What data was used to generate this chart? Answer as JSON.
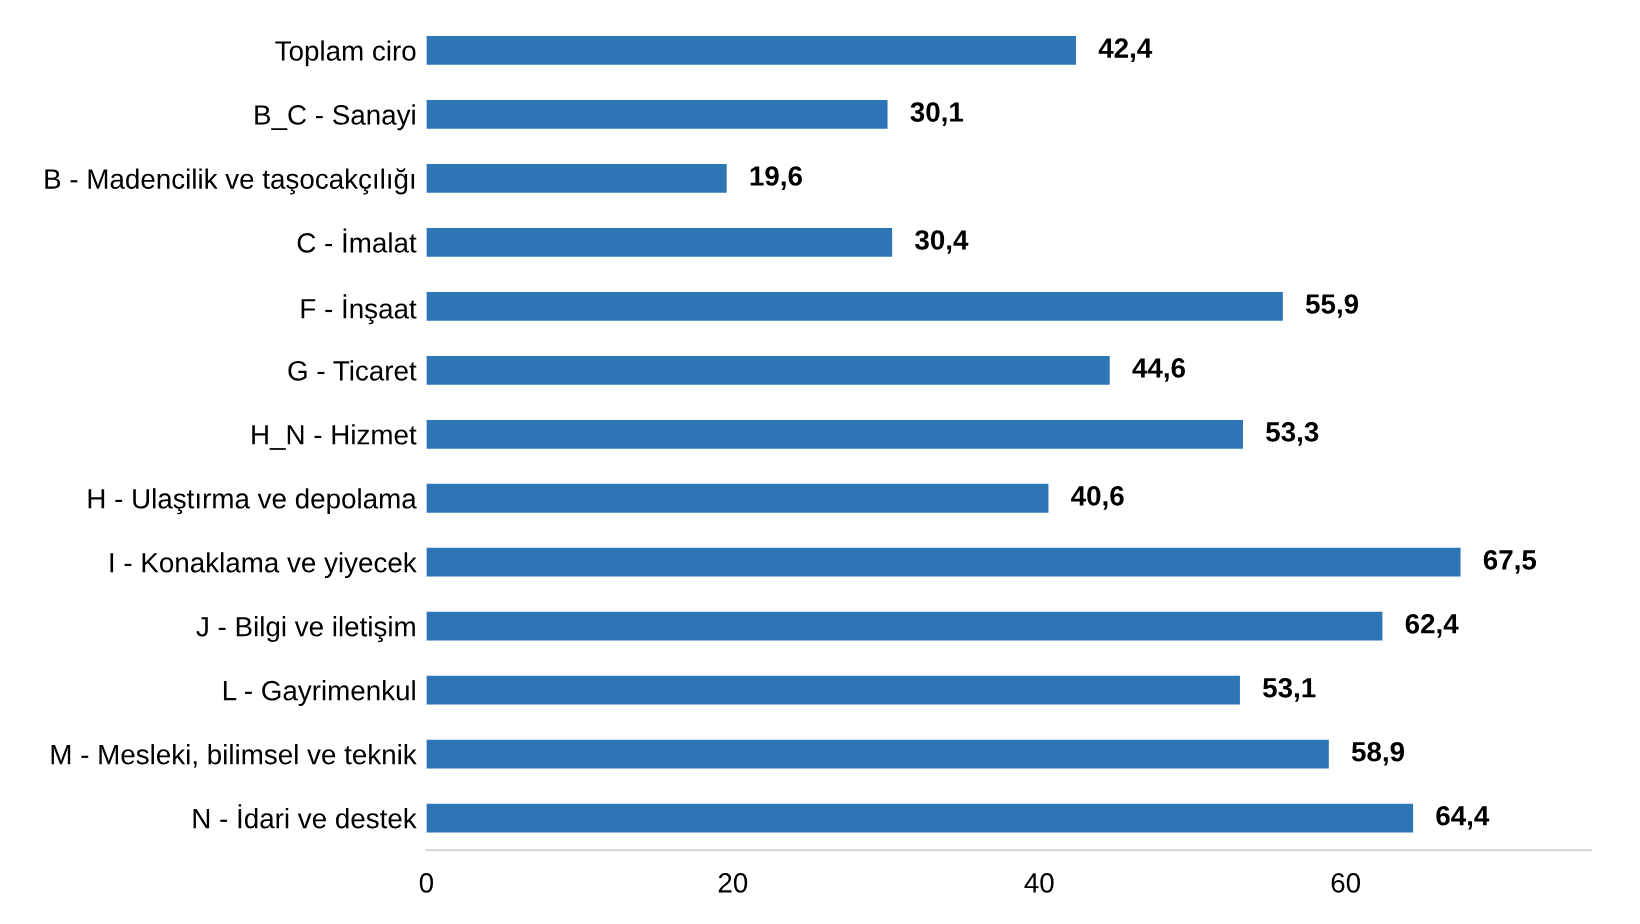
{
  "chart_data": {
    "type": "bar",
    "orientation": "horizontal",
    "categories": [
      "Toplam ciro",
      "B_C - Sanayi",
      "B - Madencilik ve taşocakçılığı",
      "C - İmalat",
      "F - İnşaat",
      "G - Ticaret",
      "H_N - Hizmet",
      "H - Ulaştırma ve depolama",
      "I - Konaklama ve yiyecek",
      "J - Bilgi ve iletişim",
      "L - Gayrimenkul",
      "M - Mesleki, bilimsel ve teknik",
      "N - İdari ve destek"
    ],
    "values": [
      42.4,
      30.1,
      19.6,
      30.4,
      55.9,
      44.6,
      53.3,
      40.6,
      67.5,
      62.4,
      53.1,
      58.9,
      64.4
    ],
    "value_labels": [
      "42,4",
      "30,1",
      "19,6",
      "30,4",
      "55,9",
      "44,6",
      "53,3",
      "40,6",
      "67,5",
      "62,4",
      "53,1",
      "58,9",
      "64,4"
    ],
    "color": "#2e75b6",
    "xlim": [
      0,
      76
    ],
    "xticks": [
      0,
      20,
      40,
      60
    ],
    "grid": false,
    "legend": false
  }
}
